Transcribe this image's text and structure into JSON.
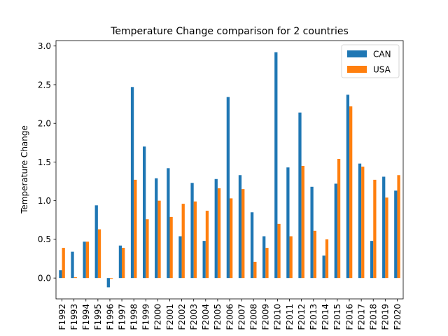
{
  "chart_data": {
    "type": "bar",
    "title": "Temperature Change comparison for 2 countries",
    "xlabel": "",
    "ylabel": "Temperature Change",
    "ylim": [
      -0.27,
      3.07
    ],
    "yticks": [
      "0.0",
      "0.5",
      "1.0",
      "1.5",
      "2.0",
      "2.5",
      "3.0"
    ],
    "ytick_values": [
      0.0,
      0.5,
      1.0,
      1.5,
      2.0,
      2.5,
      3.0
    ],
    "grid": false,
    "legend_position": "top-right",
    "categories": [
      "F1992",
      "F1993",
      "F1994",
      "F1995",
      "F1996",
      "F1997",
      "F1998",
      "F1999",
      "F2000",
      "F2001",
      "F2002",
      "F2003",
      "F2004",
      "F2005",
      "F2006",
      "F2007",
      "F2008",
      "F2009",
      "F2010",
      "F2011",
      "F2012",
      "F2013",
      "F2014",
      "F2015",
      "F2016",
      "F2017",
      "F2018",
      "F2019",
      "F2020"
    ],
    "series": [
      {
        "name": "CAN",
        "color": "#1f77b4",
        "values": [
          0.1,
          0.34,
          0.47,
          0.94,
          -0.12,
          0.42,
          2.47,
          1.7,
          1.29,
          1.42,
          0.54,
          1.23,
          0.48,
          1.28,
          2.34,
          1.33,
          0.85,
          0.54,
          2.92,
          1.43,
          2.14,
          1.18,
          0.29,
          1.22,
          2.37,
          1.48,
          0.48,
          1.31,
          1.13
        ]
      },
      {
        "name": "USA",
        "color": "#ff7f0e",
        "values": [
          0.39,
          0.01,
          0.47,
          0.63,
          -0.01,
          0.39,
          1.27,
          0.76,
          1.0,
          0.79,
          0.96,
          0.99,
          0.87,
          1.16,
          1.03,
          1.15,
          0.21,
          0.39,
          0.7,
          0.54,
          1.45,
          0.61,
          0.5,
          1.54,
          2.22,
          1.44,
          1.27,
          1.04,
          1.33
        ]
      }
    ]
  }
}
